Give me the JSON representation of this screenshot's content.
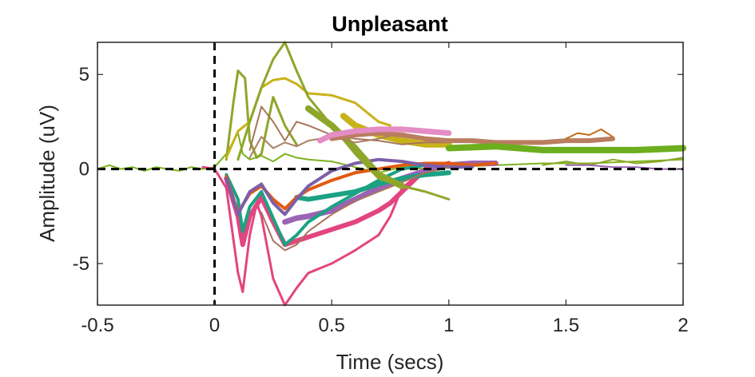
{
  "chart_data": {
    "type": "line",
    "title": "Unpleasant",
    "xlabel": "Time (secs)",
    "ylabel": "Amplitude (uV)",
    "xlim": [
      -0.5,
      2
    ],
    "ylim": [
      -7.2,
      6.7
    ],
    "x_ticks": [
      -0.5,
      0,
      0.5,
      1,
      1.5,
      2
    ],
    "x_tick_labels": [
      "-0.5",
      "0",
      "0.5",
      "1",
      "1.5",
      "2"
    ],
    "y_ticks": [
      -5,
      0,
      5
    ],
    "y_tick_labels": [
      "-5",
      "0",
      "5"
    ],
    "reference_lines": [
      {
        "axis": "x",
        "value": 0,
        "style": "dashed",
        "color": "#000000"
      },
      {
        "axis": "y",
        "value": 0,
        "style": "dashed",
        "color": "#000000"
      }
    ],
    "grid": false,
    "series": [
      {
        "color": "#7fb21f",
        "width": 2,
        "x": [
          -0.5,
          -0.45,
          -0.4,
          -0.35,
          -0.3,
          -0.25,
          -0.2,
          -0.15,
          -0.1,
          -0.05,
          0,
          0.05,
          0.1,
          0.12,
          0.15,
          0.2,
          0.25,
          0.3,
          0.35,
          0.4,
          0.5,
          0.6,
          0.7,
          0.8,
          0.9,
          1.0,
          1.2,
          1.4,
          1.6,
          1.8,
          2.0
        ],
        "y": [
          0,
          0.2,
          0,
          0.1,
          -0.1,
          0.1,
          0,
          -0.1,
          0.1,
          0,
          0.1,
          0.8,
          1.9,
          0.8,
          0.5,
          0.7,
          0.4,
          0.8,
          0.6,
          0.5,
          0.4,
          0.1,
          -0.2,
          0.1,
          0,
          0.1,
          0.2,
          0.3,
          0.3,
          0.4,
          0.5
        ]
      },
      {
        "color": "#e2457f",
        "width": 3,
        "x": [
          -0.05,
          0,
          0.05,
          0.1,
          0.12,
          0.15,
          0.18,
          0.2,
          0.25,
          0.3,
          0.35,
          0.4,
          0.5,
          0.6,
          0.7,
          0.75,
          0.8,
          0.9
        ],
        "y": [
          0.1,
          0,
          -1,
          -5.5,
          -6.5,
          -3.5,
          -1.8,
          -2.5,
          -5.8,
          -7.2,
          -6.3,
          -5.5,
          -5,
          -4.3,
          -3.5,
          -2.5,
          -1,
          0
        ]
      },
      {
        "color": "#e2457f",
        "width": 6,
        "x": [
          0.05,
          0.1,
          0.12,
          0.15,
          0.2,
          0.25,
          0.3,
          0.35,
          0.4,
          0.5,
          0.6,
          0.7,
          0.75,
          0.8,
          0.85,
          0.9,
          1.0
        ],
        "y": [
          -0.5,
          -2.5,
          -4,
          -2.5,
          -1.5,
          -2.8,
          -4,
          -3.8,
          -3.6,
          -3.2,
          -2.8,
          -2.2,
          -1.8,
          -1.2,
          -0.6,
          0,
          0.3
        ]
      },
      {
        "color": "#9b63b4",
        "width": 7,
        "x": [
          0.3,
          0.35,
          0.4,
          0.5,
          0.6,
          0.7,
          0.8,
          0.9,
          1.0,
          1.1,
          1.2
        ],
        "y": [
          -2.8,
          -2.6,
          -2.5,
          -2.2,
          -1.6,
          -1,
          -0.5,
          -0.1,
          0.2,
          0.3,
          0.3
        ]
      },
      {
        "color": "#1ba283",
        "width": 4,
        "x": [
          0.05,
          0.1,
          0.12,
          0.15,
          0.2,
          0.25,
          0.3,
          0.35,
          0.4,
          0.5,
          0.6,
          0.7,
          0.8,
          0.9
        ],
        "y": [
          -0.3,
          -1.6,
          -3.3,
          -2,
          -1.2,
          -2.6,
          -4,
          -3.5,
          -2.8,
          -2,
          -1.3,
          -0.6,
          0,
          0.2
        ]
      },
      {
        "color": "#1ba283",
        "width": 6,
        "x": [
          0.35,
          0.4,
          0.5,
          0.6,
          0.7,
          0.8,
          0.9,
          1.0
        ],
        "y": [
          -1.5,
          -1.6,
          -1.4,
          -1.2,
          -0.8,
          -0.5,
          -0.3,
          -0.2
        ]
      },
      {
        "color": "#e25b0f",
        "width": 4,
        "x": [
          0.05,
          0.1,
          0.15,
          0.2,
          0.25,
          0.3,
          0.35,
          0.4,
          0.5,
          0.6,
          0.7,
          0.8,
          0.9,
          1.0,
          1.1,
          1.2
        ],
        "y": [
          -0.4,
          -2.3,
          -1.3,
          -0.9,
          -1.6,
          -2.1,
          -1.5,
          -1.1,
          -0.6,
          -0.2,
          0,
          0.2,
          0.3,
          0.3,
          0.2,
          0.3
        ]
      },
      {
        "color": "#7b5fa8",
        "width": 4,
        "x": [
          0.05,
          0.1,
          0.15,
          0.2,
          0.25,
          0.3,
          0.35,
          0.4,
          0.5,
          0.6,
          0.7,
          0.8,
          0.9,
          1.0,
          1.1
        ],
        "y": [
          -0.5,
          -2.4,
          -1.2,
          -0.8,
          -1.8,
          -2.4,
          -1.6,
          -0.9,
          -0.1,
          0.3,
          0.5,
          0.4,
          0.2,
          0.1,
          0.1
        ]
      },
      {
        "color": "#a8745a",
        "width": 2,
        "x": [
          0.2,
          0.25,
          0.3,
          0.35,
          0.4,
          0.5,
          0.6,
          0.7,
          0.8,
          0.9,
          1.0
        ],
        "y": [
          -2.3,
          -3.8,
          -4.3,
          -4,
          -3.3,
          -2.4,
          -1.7,
          -1.2,
          -0.7,
          -0.2,
          0.1
        ]
      },
      {
        "color": "#8ea62a",
        "width": 3,
        "x": [
          0.05,
          0.08,
          0.1,
          0.13,
          0.15,
          0.18,
          0.2,
          0.25,
          0.3,
          0.35
        ],
        "y": [
          0.5,
          3.5,
          5.2,
          4.8,
          1.5,
          0.6,
          0.8,
          3.8,
          2.3,
          1.3
        ]
      },
      {
        "color": "#c8b219",
        "width": 3,
        "x": [
          0.05,
          0.1,
          0.15,
          0.2,
          0.25,
          0.3,
          0.35,
          0.4,
          0.5,
          0.6,
          0.7,
          0.75
        ],
        "y": [
          0.6,
          2,
          2.5,
          4.3,
          4.7,
          4.8,
          4.5,
          4,
          3.9,
          3.5,
          2.5,
          2.3
        ]
      },
      {
        "color": "#c8b219",
        "width": 8,
        "x": [
          0.55,
          0.6,
          0.7,
          0.8,
          0.9,
          1.0
        ],
        "y": [
          2.8,
          2.3,
          1.8,
          1.5,
          1.3,
          1.3
        ]
      },
      {
        "color": "#8ea62a",
        "width": 3,
        "x": [
          0.1,
          0.15,
          0.2,
          0.25,
          0.3,
          0.35,
          0.4,
          0.5,
          0.6,
          0.7,
          0.8,
          0.9,
          1.0
        ],
        "y": [
          0.5,
          2.5,
          4.3,
          5.8,
          6.7,
          5.2,
          3.8,
          2.3,
          0.8,
          -0.5,
          -0.9,
          -1.2,
          -1.6
        ]
      },
      {
        "color": "#8ea62a",
        "width": 8,
        "x": [
          0.4,
          0.5,
          0.6,
          0.7,
          0.8
        ],
        "y": [
          3.2,
          2.3,
          1.1,
          -0.3,
          -0.9
        ]
      },
      {
        "color": "#a8745a",
        "width": 2,
        "x": [
          0.15,
          0.2,
          0.25,
          0.3,
          0.35,
          0.4,
          0.5,
          0.6,
          0.7,
          0.8,
          0.9,
          1.0
        ],
        "y": [
          1,
          3.3,
          2.5,
          1.5,
          2.5,
          2.3,
          1.8,
          1.6,
          1.5,
          1.3,
          1.4,
          1.4
        ]
      },
      {
        "color": "#aa8063",
        "width": 2,
        "x": [
          0.15,
          0.2,
          0.25,
          0.3,
          0.35,
          0.4,
          0.5,
          0.6,
          0.7,
          0.8,
          0.9,
          1.0
        ],
        "y": [
          0.6,
          1.7,
          1.1,
          1.4,
          1.2,
          1.5,
          1.7,
          1.4,
          1.6,
          1.9,
          1.5,
          1.5
        ]
      },
      {
        "color": "#b97d5f",
        "width": 6,
        "x": [
          0.5,
          0.6,
          0.7,
          0.8,
          0.9,
          1.0,
          1.1,
          1.2,
          1.3,
          1.4,
          1.5,
          1.6,
          1.7
        ],
        "y": [
          1.6,
          1.8,
          1.9,
          1.8,
          1.6,
          1.5,
          1.5,
          1.4,
          1.4,
          1.4,
          1.5,
          1.5,
          1.6
        ]
      },
      {
        "color": "#c16d19",
        "width": 2,
        "x": [
          1.5,
          1.55,
          1.6,
          1.65,
          1.7
        ],
        "y": [
          1.6,
          1.9,
          1.8,
          2.1,
          1.7
        ]
      },
      {
        "color": "#e48cc4",
        "width": 7,
        "x": [
          0.45,
          0.5,
          0.6,
          0.7,
          0.8,
          0.9,
          1.0
        ],
        "y": [
          1.5,
          1.8,
          2,
          2.1,
          2.1,
          2,
          1.9
        ]
      },
      {
        "color": "#6cae1e",
        "width": 8,
        "x": [
          1.0,
          1.2,
          1.4,
          1.6,
          1.8,
          2.0
        ],
        "y": [
          1.1,
          1.2,
          1,
          1,
          1,
          1.1
        ]
      },
      {
        "color": "#8ea62a",
        "width": 2,
        "x": [
          1.4,
          1.5,
          1.6,
          1.7,
          1.8,
          1.9,
          2.0
        ],
        "y": [
          0.2,
          0.4,
          0.2,
          0.5,
          0.3,
          0.4,
          0.6
        ]
      },
      {
        "color": "#9b63b4",
        "width": 2,
        "x": [
          1.5,
          1.6,
          1.7,
          1.8,
          1.9,
          2.0
        ],
        "y": [
          0.2,
          0.2,
          0.1,
          0.1,
          0,
          0
        ]
      }
    ]
  }
}
